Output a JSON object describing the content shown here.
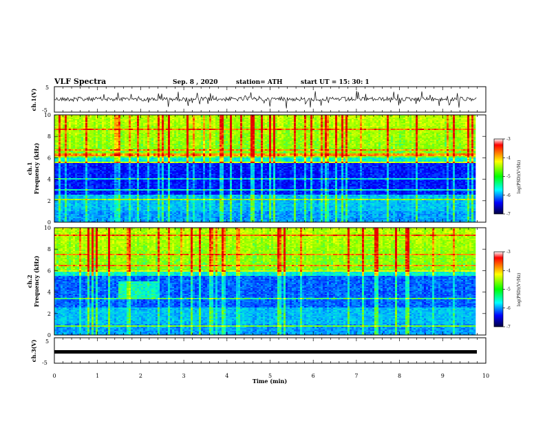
{
  "header": {
    "title": "VLF Spectra",
    "date": "Sep. 8 , 2020",
    "station": "station= ATH",
    "start_ut": "start UT = 15: 30: 1"
  },
  "chart_data": [
    {
      "type": "line",
      "panel": "ch1-waveform",
      "ylabel": "ch.1(V)",
      "ylim": [
        -5,
        5
      ],
      "yticks": [
        "5",
        "-5"
      ],
      "xlim": [
        0,
        10
      ]
    },
    {
      "type": "heatmap",
      "panel": "ch1-spectrogram",
      "ylabel": "ch.1\nFrequency (kHz)",
      "ylim": [
        0,
        10
      ],
      "yticks": [
        "0",
        "2",
        "4",
        "6",
        "8",
        "10"
      ],
      "xlim": [
        0,
        10
      ],
      "colorbar": {
        "label": "log(PSD)(V²/Hz)",
        "ticks": [
          "-3",
          "-4",
          "-5",
          "-6",
          "-7"
        ],
        "range": [
          -7,
          -3
        ]
      }
    },
    {
      "type": "heatmap",
      "panel": "ch2-spectrogram",
      "ylabel": "ch.2\nFrequency (kHz)",
      "ylim": [
        0,
        10
      ],
      "yticks": [
        "0",
        "2",
        "4",
        "6",
        "8",
        "10"
      ],
      "xlim": [
        0,
        10
      ],
      "colorbar": {
        "label": "log(PSD)(V²/Hz)",
        "ticks": [
          "-3",
          "-4",
          "-5",
          "-6",
          "-7"
        ],
        "range": [
          -7,
          -3
        ]
      }
    },
    {
      "type": "line",
      "panel": "ch3-waveform",
      "ylabel": "ch.3(V)",
      "ylim": [
        -5,
        5
      ],
      "yticks": [
        "5",
        "-5"
      ],
      "xlim": [
        0,
        10
      ],
      "xlabel": "Time (min)",
      "xticks": [
        "0",
        "1",
        "2",
        "3",
        "4",
        "5",
        "6",
        "7",
        "8",
        "9",
        "10"
      ]
    }
  ]
}
